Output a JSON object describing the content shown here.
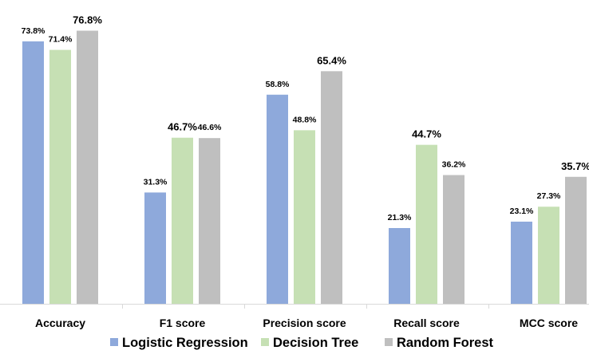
{
  "chart_data": {
    "type": "bar",
    "title": "",
    "xlabel": "",
    "ylabel": "",
    "ylim": [
      0,
      80
    ],
    "grid": false,
    "legend_position": "bottom",
    "categories": [
      "Accuracy",
      "F1 score",
      "Precision score",
      "Recall score",
      "MCC score"
    ],
    "series": [
      {
        "name": "Logistic Regression",
        "color": "#8EA9DB",
        "values": [
          73.8,
          31.3,
          58.8,
          21.3,
          23.1
        ],
        "labels": [
          "73.8%",
          "31.3%",
          "58.8%",
          "21.3%",
          "23.1%"
        ]
      },
      {
        "name": "Decision Tree",
        "color": "#C6E0B4",
        "values": [
          71.4,
          46.7,
          48.8,
          44.7,
          27.3
        ],
        "labels": [
          "71.4%",
          "46.7%",
          "48.8%",
          "44.7%",
          "27.3%"
        ]
      },
      {
        "name": "Random Forest",
        "color": "#BFBFBF",
        "values": [
          76.8,
          46.6,
          65.4,
          36.2,
          35.7
        ],
        "labels": [
          "76.8%",
          "46.6%",
          "65.4%",
          "36.2%",
          "35.7%"
        ]
      }
    ]
  }
}
